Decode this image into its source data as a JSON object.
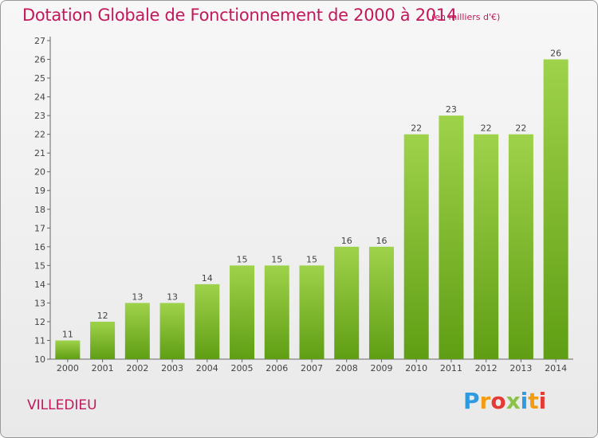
{
  "header": {
    "title": "Dotation Globale de Fonctionnement de 2000 à 2014",
    "subtitle": "(en milliers d'€)"
  },
  "footer": {
    "commune": "VILLEDIEU",
    "logo_text": "Proxiti",
    "logo_colors": [
      "#2e9be0",
      "#f39c12",
      "#e53935",
      "#8bc34a",
      "#2e9be0",
      "#f39c12",
      "#e53935"
    ]
  },
  "colors": {
    "title": "#c2185b",
    "bar_light": "#9fd24b",
    "bar_dark": "#5f9e14",
    "axis": "#555555"
  },
  "chart_data": {
    "type": "bar",
    "title": "Dotation Globale de Fonctionnement de 2000 à 2014",
    "subtitle": "(en milliers d'€)",
    "categories": [
      "2000",
      "2001",
      "2002",
      "2003",
      "2004",
      "2005",
      "2006",
      "2007",
      "2008",
      "2009",
      "2010",
      "2011",
      "2012",
      "2013",
      "2014"
    ],
    "values": [
      11,
      12,
      13,
      13,
      14,
      15,
      15,
      15,
      16,
      16,
      22,
      23,
      22,
      22,
      26
    ],
    "ylim": [
      10,
      27
    ],
    "yticks": [
      10,
      11,
      12,
      13,
      14,
      15,
      16,
      17,
      18,
      19,
      20,
      21,
      22,
      23,
      24,
      25,
      26,
      27
    ],
    "xlabel": "",
    "ylabel": "",
    "grid": false,
    "data_labels": true
  }
}
